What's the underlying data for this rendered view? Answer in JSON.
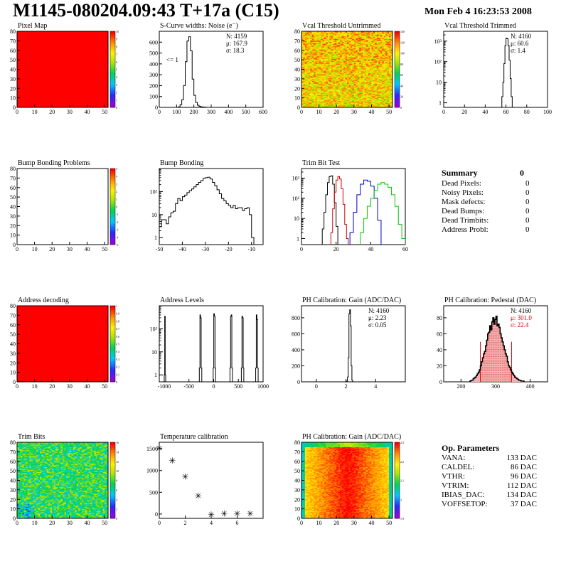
{
  "header": {
    "title": "M1145-080204.09:43 T+17a (C15)",
    "date": "Mon Feb  4 16:23:53 2008"
  },
  "summary": {
    "title": "Summary",
    "total": "0",
    "rows": [
      {
        "label": "Dead Pixels:",
        "value": "0"
      },
      {
        "label": "Noisy Pixels:",
        "value": "0"
      },
      {
        "label": "Mask defects:",
        "value": "0"
      },
      {
        "label": "Dead Bumps:",
        "value": "0"
      },
      {
        "label": "Dead Trimbits:",
        "value": "0"
      },
      {
        "label": "Address Probl:",
        "value": "0"
      }
    ]
  },
  "op_params": {
    "title": "Op. Parameters",
    "rows": [
      {
        "label": "VANA:",
        "value": "133 DAC"
      },
      {
        "label": "CALDEL:",
        "value": "86 DAC"
      },
      {
        "label": "VTHR:",
        "value": "96 DAC"
      },
      {
        "label": "VTRIM:",
        "value": "112 DAC"
      },
      {
        "label": "IBIAS_DAC:",
        "value": "134 DAC"
      },
      {
        "label": "VOFFSETOP:",
        "value": "37 DAC"
      }
    ]
  },
  "colors": {
    "red": "#ff0000",
    "hist_line": "#000000",
    "trim_red": "#cc0000",
    "trim_blue": "#0000cc",
    "trim_green": "#00cc00",
    "pedestal_fill": "#f4b0b0"
  },
  "chart_data": [
    {
      "id": "pixel-map",
      "type": "heatmap",
      "title": "Pixel Map",
      "xlim": [
        0,
        52
      ],
      "ylim": [
        0,
        80
      ],
      "xticks": [
        0,
        10,
        20,
        30,
        40,
        50
      ],
      "yticks": [
        0,
        10,
        20,
        30,
        40,
        50,
        60,
        70,
        80
      ],
      "palette": "uniform-red",
      "colorbar": {
        "min": 0,
        "max": 10,
        "labels": [
          "0",
          "1",
          "2",
          "3",
          "4",
          "5",
          "6",
          "7",
          "8",
          "9",
          "10"
        ]
      }
    },
    {
      "id": "scurve-noise",
      "type": "histogram",
      "title": "S-Curve widths: Noise (e⁻)",
      "xlim": [
        0,
        600
      ],
      "ylim": [
        0,
        700
      ],
      "log": false,
      "xticks": [
        0,
        100,
        200,
        300,
        400,
        500,
        600
      ],
      "yticks": [
        0,
        100,
        200,
        300,
        400,
        500,
        600
      ],
      "stats": [
        "N: 4159",
        "μ: 167.9",
        "σ: 18.3"
      ],
      "annotation": "<= 1",
      "bin_edges": [
        110,
        120,
        130,
        140,
        150,
        160,
        170,
        180,
        190,
        200,
        210,
        220,
        230,
        240,
        250,
        260,
        270,
        280,
        290
      ],
      "counts": [
        5,
        25,
        70,
        200,
        420,
        610,
        650,
        520,
        260,
        110,
        45,
        20,
        10,
        5,
        3,
        2,
        1,
        0
      ]
    },
    {
      "id": "vcal-untrimmed",
      "type": "heatmap",
      "title": "Vcal Threshold Untrimmed",
      "xlim": [
        0,
        52
      ],
      "ylim": [
        0,
        80
      ],
      "xticks": [
        0,
        10,
        20,
        30,
        40,
        50
      ],
      "yticks": [
        0,
        10,
        20,
        30,
        40,
        50,
        60,
        70,
        80
      ],
      "palette": "rainbow",
      "colorbar": {
        "min": 0,
        "max": 140,
        "labels": [
          "0",
          "20",
          "40",
          "60",
          "80",
          "100",
          "120",
          "140"
        ]
      },
      "value_range": [
        80,
        130
      ]
    },
    {
      "id": "vcal-trimmed",
      "type": "histogram",
      "title": "Vcal Threshold Trimmed",
      "xlim": [
        0,
        100
      ],
      "ylim": [
        0.6,
        3000
      ],
      "log": true,
      "xticks": [
        0,
        20,
        40,
        60,
        80,
        100
      ],
      "ytick_labels": [
        "1",
        "10",
        "10²",
        "10³"
      ],
      "stats": [
        "N: 4160",
        "μ: 60.6",
        "σ:  1.4"
      ],
      "bin_edges": [
        56,
        57,
        58,
        59,
        60,
        61,
        62,
        63,
        64,
        65,
        66
      ],
      "counts": [
        2,
        10,
        80,
        600,
        1400,
        1300,
        600,
        120,
        15,
        2
      ]
    },
    {
      "id": "bump-bonding-problems",
      "type": "heatmap",
      "title": "Bump Bonding Problems",
      "xlim": [
        0,
        52
      ],
      "ylim": [
        0,
        80
      ],
      "xticks": [
        0,
        10,
        20,
        30,
        40,
        50
      ],
      "yticks": [
        0,
        10,
        20,
        30,
        40,
        50,
        60,
        70,
        80
      ],
      "palette": "empty",
      "colorbar": {
        "min": -5,
        "max": 5,
        "labels": [
          "-5",
          "-4",
          "-3",
          "-2",
          "-1",
          "0",
          "1",
          "2",
          "3",
          "4",
          "5"
        ]
      }
    },
    {
      "id": "bump-bonding",
      "type": "histogram",
      "title": "Bump Bonding",
      "xlim": [
        -50,
        -5
      ],
      "ylim": [
        0.5,
        1000
      ],
      "log": true,
      "xticks": [
        -50,
        -40,
        -30,
        -20,
        -10
      ],
      "ytick_labels": [
        "1",
        "10",
        "10²"
      ],
      "bin_edges": [
        -50,
        -49,
        -48,
        -47,
        -46,
        -45,
        -44,
        -43,
        -42,
        -41,
        -40,
        -39,
        -38,
        -37,
        -36,
        -35,
        -34,
        -33,
        -32,
        -31,
        -30,
        -29,
        -28,
        -27,
        -26,
        -25,
        -24,
        -23,
        -22,
        -21,
        -20,
        -19,
        -18,
        -17,
        -16,
        -15,
        -14,
        -13,
        -12,
        -11,
        -10,
        -9
      ],
      "counts": [
        3,
        6,
        6,
        4,
        8,
        12,
        14,
        30,
        50,
        40,
        60,
        70,
        90,
        110,
        130,
        160,
        200,
        250,
        300,
        380,
        400,
        420,
        350,
        250,
        180,
        120,
        80,
        50,
        40,
        30,
        25,
        20,
        25,
        18,
        20,
        20,
        15,
        18,
        20,
        10,
        1
      ]
    },
    {
      "id": "trim-bit-test",
      "type": "histogram",
      "title": "Trim Bit Test",
      "xlim": [
        0,
        60
      ],
      "ylim": [
        0.5,
        3000
      ],
      "log": true,
      "xticks": [
        0,
        20,
        40,
        60
      ],
      "ytick_labels": [
        "1",
        "10",
        "10²",
        "10³"
      ],
      "series": [
        {
          "name": "",
          "color": "#000000",
          "bin_edges": [
            12,
            13,
            14,
            15,
            16,
            17,
            18,
            19,
            20,
            21
          ],
          "counts": [
            3,
            20,
            150,
            600,
            1200,
            1300,
            500,
            60,
            4
          ]
        },
        {
          "name": "",
          "color": "#cc0000",
          "bin_edges": [
            17,
            18,
            19,
            20,
            21,
            22,
            23,
            24,
            25,
            26,
            27
          ],
          "counts": [
            2,
            30,
            200,
            800,
            1200,
            900,
            300,
            50,
            5,
            1
          ]
        },
        {
          "name": "",
          "color": "#0000cc",
          "bin_edges": [
            28,
            30,
            32,
            34,
            36,
            38,
            40,
            42,
            44,
            46
          ],
          "counts": [
            2,
            20,
            150,
            500,
            800,
            700,
            400,
            100,
            8
          ]
        },
        {
          "name": "",
          "color": "#00cc00",
          "bin_edges": [
            34,
            36,
            38,
            40,
            42,
            44,
            46,
            48,
            50,
            52,
            54,
            56,
            58,
            60
          ],
          "counts": [
            2,
            10,
            40,
            100,
            250,
            500,
            600,
            500,
            350,
            150,
            40,
            5,
            1
          ]
        }
      ]
    },
    {
      "id": "address-decoding",
      "type": "heatmap",
      "title": "Address decoding",
      "xlim": [
        0,
        52
      ],
      "ylim": [
        0,
        80
      ],
      "xticks": [
        0,
        10,
        20,
        30,
        40,
        50
      ],
      "yticks": [
        0,
        10,
        20,
        30,
        40,
        50,
        60,
        70,
        80
      ],
      "palette": "uniform-red",
      "colorbar": {
        "min": 0,
        "max": 1,
        "labels": [
          "0",
          "0.1",
          "0.2",
          "0.3",
          "0.4",
          "0.5",
          "0.6",
          "0.7",
          "0.8",
          "0.9",
          "1"
        ]
      }
    },
    {
      "id": "address-levels",
      "type": "histogram",
      "title": "Address Levels",
      "xlim": [
        -1100,
        1000
      ],
      "ylim": [
        0.5,
        1000
      ],
      "log": true,
      "xticks": [
        -1000,
        -500,
        0,
        500,
        1000
      ],
      "ytick_labels": [
        "1",
        "10",
        "10²"
      ],
      "peaks": [
        {
          "x": [
            -1000,
            -970
          ],
          "h": [
            1,
            350,
            1
          ]
        },
        {
          "x": [
            -290,
            -240
          ],
          "h": [
            2,
            400,
            300,
            2
          ]
        },
        {
          "x": [
            -10,
            40
          ],
          "h": [
            2,
            450,
            350,
            2
          ]
        },
        {
          "x": [
            330,
            380
          ],
          "h": [
            2,
            350,
            400,
            2
          ]
        },
        {
          "x": [
            560,
            610
          ],
          "h": [
            2,
            350,
            300,
            2
          ]
        },
        {
          "x": [
            850,
            900
          ],
          "h": [
            2,
            400,
            250,
            2
          ]
        }
      ]
    },
    {
      "id": "ph-gain",
      "type": "histogram",
      "title": "PH Calibration: Gain (ADC/DAC)",
      "xlim": [
        -1,
        6
      ],
      "ylim": [
        0,
        950
      ],
      "log": false,
      "xticks": [
        0,
        2,
        4
      ],
      "yticks": [
        0,
        200,
        400,
        600,
        800
      ],
      "stats": [
        "N: 4160",
        "μ: 2.23",
        "σ: 0.05"
      ],
      "bin_edges": [
        2.05,
        2.1,
        2.15,
        2.2,
        2.25,
        2.3,
        2.35,
        2.4,
        2.45
      ],
      "counts": [
        10,
        60,
        300,
        850,
        900,
        700,
        200,
        20
      ]
    },
    {
      "id": "ph-pedestal",
      "type": "histogram",
      "title": "PH Calibration: Pedestal (DAC)",
      "xlim": [
        150,
        450
      ],
      "ylim": [
        0,
        95
      ],
      "log": false,
      "xticks": [
        200,
        300,
        400
      ],
      "yticks": [
        0,
        20,
        40,
        60,
        80
      ],
      "stats": [
        "N: 4160",
        "μ: 301.0",
        "σ: 22.4"
      ],
      "stats_colors": [
        "#000000",
        "#cc0000",
        "#cc0000"
      ],
      "fit_range": [
        256,
        346
      ],
      "bin_edges": [
        226,
        229,
        232,
        235,
        238,
        241,
        244,
        247,
        250,
        253,
        256,
        259,
        262,
        265,
        268,
        271,
        274,
        277,
        280,
        283,
        286,
        289,
        292,
        295,
        298,
        301,
        304,
        307,
        310,
        313,
        316,
        319,
        322,
        325,
        328,
        331,
        334,
        337,
        340,
        343,
        346,
        349,
        352,
        355,
        358,
        361,
        364,
        367,
        370,
        373,
        376,
        379,
        382
      ],
      "counts": [
        1,
        2,
        2,
        4,
        5,
        6,
        8,
        10,
        12,
        15,
        20,
        25,
        30,
        35,
        38,
        45,
        52,
        60,
        62,
        70,
        65,
        75,
        80,
        72,
        78,
        82,
        70,
        72,
        68,
        60,
        55,
        50,
        45,
        40,
        35,
        32,
        25,
        20,
        18,
        15,
        12,
        10,
        8,
        6,
        5,
        4,
        3,
        2,
        2,
        1,
        1,
        1
      ]
    },
    {
      "id": "trim-bits",
      "type": "heatmap",
      "title": "Trim Bits",
      "xlim": [
        0,
        52
      ],
      "ylim": [
        0,
        80
      ],
      "xticks": [
        0,
        10,
        20,
        30,
        40,
        50
      ],
      "yticks": [
        0,
        10,
        20,
        30,
        40,
        50,
        60,
        70,
        80
      ],
      "palette": "rainbow",
      "colorbar": {
        "min": 0,
        "max": 16,
        "labels": [
          "0",
          "2",
          "4",
          "6",
          "8",
          "10",
          "12",
          "14",
          "16"
        ]
      },
      "value_range": [
        5,
        10
      ]
    },
    {
      "id": "temperature-calibration",
      "type": "scatter",
      "title": "Temperature calibration",
      "xlim": [
        0,
        8
      ],
      "ylim": [
        -100,
        1650
      ],
      "xticks": [
        0,
        2,
        4,
        6
      ],
      "yticks": [
        0,
        500,
        1000,
        1500
      ],
      "x": [
        0,
        1,
        2,
        3,
        4,
        5,
        6,
        7
      ],
      "y": [
        1530,
        1240,
        870,
        430,
        0,
        20,
        20,
        20
      ]
    },
    {
      "id": "ph-gain-map",
      "type": "heatmap",
      "title": "PH Calibration: Gain (ADC/DAC)",
      "xlim": [
        0,
        52
      ],
      "ylim": [
        0,
        80
      ],
      "xticks": [
        0,
        10,
        20,
        30,
        40,
        50
      ],
      "yticks": [
        0,
        10,
        20,
        30,
        40,
        50,
        60,
        70,
        80
      ],
      "palette": "rainbow",
      "colorbar": {
        "min": 1.9,
        "max": 2.3,
        "labels": [
          "1.9",
          "2",
          "2.1",
          "2.2",
          "2.3"
        ]
      },
      "value_range": [
        2.15,
        2.3
      ]
    }
  ]
}
